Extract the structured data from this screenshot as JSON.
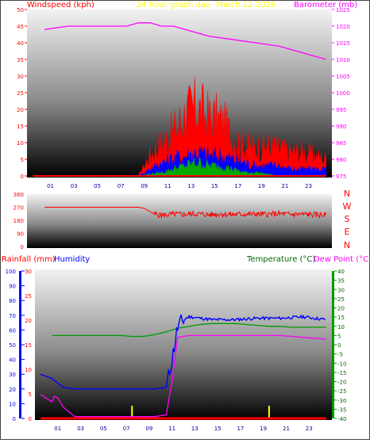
{
  "header": {
    "windspeed_label": "Windspeed (kph)",
    "title": "24 hour graph day",
    "date": "March 12 2026",
    "barometer_label": "Barometer (mb)"
  },
  "compass": [
    "N",
    "W",
    "S",
    "E",
    "N"
  ],
  "lower_labels": {
    "rainfall": "Rainfall (mm)",
    "humidity": "Humidity",
    "temperature": "Temperature (°C)",
    "dewpoint": "Dew Point (°C)"
  },
  "colors": {
    "wind_gust": "#ff0000",
    "wind_avg_blue": "#0000ff",
    "wind_avg_green": "#00aa00",
    "barometer": "#ff00ff",
    "direction": "#ff0000",
    "rainfall": "#ff0000",
    "humidity": "#0000ff",
    "temperature": "#009900",
    "dewpoint": "#ff00ff",
    "title": "#ffff00",
    "axis_left_top": "#ff0000",
    "axis_right_top": "#ff00ff",
    "axis_temp": "#006600",
    "hour_ticks": "#000099"
  },
  "chart_data": [
    {
      "type": "area",
      "ylim_left": [
        0,
        50
      ],
      "ylim_right": [
        975,
        1025
      ],
      "yticks_left": [
        0,
        5,
        10,
        15,
        20,
        25,
        30,
        35,
        40,
        45,
        50
      ],
      "yticks_right": [
        975,
        980,
        985,
        990,
        995,
        1000,
        1005,
        1010,
        1015,
        1020,
        1025
      ],
      "x_ticks": [
        "01",
        "03",
        "05",
        "07",
        "09",
        "11",
        "13",
        "15",
        "17",
        "19",
        "21",
        "23"
      ],
      "series": [
        {
          "axis": "right",
          "x": [
            0,
            2,
            4,
            6,
            7,
            8,
            9,
            10,
            11,
            12,
            14,
            16,
            18,
            20,
            22,
            24
          ],
          "y": [
            1019,
            1020,
            1020,
            1020,
            1020,
            1021,
            1021,
            1020,
            1020,
            1019,
            1017,
            1016,
            1015,
            1014,
            1012,
            1010
          ]
        },
        {
          "axis": "left",
          "kind": "gust",
          "x": [
            0,
            8,
            9,
            10,
            11,
            12,
            13,
            14,
            15,
            16,
            17,
            18,
            19,
            20,
            21,
            22,
            23,
            24
          ],
          "y": [
            0,
            0,
            6,
            10,
            13,
            18,
            20,
            17,
            16,
            12,
            9,
            8,
            9,
            8,
            7,
            7,
            6,
            5
          ]
        },
        {
          "axis": "left",
          "kind": "average",
          "x": [
            0,
            8,
            9,
            10,
            11,
            12,
            13,
            14,
            15,
            16,
            17,
            18,
            19,
            20,
            21,
            22,
            23,
            24
          ],
          "y": [
            0,
            0,
            2,
            4,
            5,
            6,
            7,
            6,
            6,
            5,
            4,
            3,
            3,
            3,
            2,
            2,
            2,
            2
          ]
        },
        {
          "axis": "left",
          "kind": "low",
          "x": [
            0,
            8,
            10,
            11,
            12,
            13,
            14,
            15,
            16,
            17,
            18,
            20,
            24
          ],
          "y": [
            0,
            0,
            1,
            2,
            3,
            4,
            3,
            3,
            2,
            1,
            1,
            0,
            0
          ]
        }
      ]
    },
    {
      "type": "line",
      "ylim": [
        0,
        360
      ],
      "yticks": [
        0,
        90,
        180,
        270,
        360
      ],
      "x": [
        0,
        2,
        4,
        6,
        7,
        8,
        8.5,
        9,
        9.5,
        10,
        11,
        12,
        13,
        14,
        15,
        16,
        17,
        18,
        19,
        20,
        21,
        22,
        23,
        24
      ],
      "y": [
        270,
        270,
        270,
        270,
        270,
        270,
        262,
        240,
        220,
        215,
        222,
        220,
        225,
        218,
        224,
        220,
        222,
        223,
        221,
        225,
        220,
        222,
        219,
        215
      ]
    },
    {
      "type": "line",
      "ylim_rain": [
        0,
        100
      ],
      "yticks_rain": [
        0,
        10,
        20,
        30,
        40,
        50,
        60,
        70,
        80,
        90,
        100
      ],
      "ylim_hum": [
        0,
        30
      ],
      "yticks_hum": [
        0,
        5,
        10,
        15,
        20,
        25,
        30
      ],
      "ylim_temp": [
        -40,
        40
      ],
      "yticks_temp": [
        -40,
        -35,
        -30,
        -25,
        -20,
        -15,
        -10,
        -5,
        0,
        5,
        10,
        15,
        20,
        25,
        30,
        35,
        40
      ],
      "x_ticks": [
        "01",
        "03",
        "05",
        "07",
        "09",
        "11",
        "13",
        "15",
        "17",
        "19",
        "21",
        "23"
      ],
      "series": [
        {
          "kind": "temperature",
          "x": [
            0,
            2,
            4,
            6,
            7,
            8,
            9,
            10,
            11,
            12,
            13,
            14,
            15,
            16,
            17,
            18,
            19,
            20,
            21,
            22,
            23,
            24
          ],
          "y": [
            5,
            5,
            5,
            5,
            4.5,
            4.5,
            5.5,
            7,
            9,
            10,
            11,
            11.5,
            11.5,
            11.5,
            11,
            10.5,
            10,
            10,
            9.5,
            9.5,
            9.5,
            9.5
          ]
        },
        {
          "kind": "dewpoint",
          "x": [
            -1,
            0,
            0.2,
            0.5,
            1,
            2,
            3,
            4,
            5,
            6,
            7,
            8,
            9,
            10,
            10.5,
            11,
            12,
            14,
            16,
            18,
            20,
            22,
            24
          ],
          "y": [
            -27,
            -31,
            -28,
            -29,
            -34,
            -39,
            -39,
            -39,
            -39,
            -39,
            -39,
            -39,
            -39,
            -38,
            -20,
            4,
            5,
            5,
            5,
            5,
            5,
            4,
            3
          ]
        },
        {
          "kind": "humidity",
          "x": [
            -1,
            0,
            0.5,
            1,
            2,
            4,
            6,
            8,
            9,
            10,
            10.5,
            11,
            11.5,
            12,
            13,
            14,
            16,
            18,
            20,
            22,
            24
          ],
          "y": [
            30,
            27,
            24,
            21,
            20,
            20,
            20,
            20,
            20,
            21,
            40,
            62,
            67,
            69,
            68,
            67,
            67,
            68,
            68,
            69,
            67
          ]
        },
        {
          "kind": "rainfall",
          "x": [
            -1,
            24
          ],
          "y": [
            0,
            0
          ]
        }
      ],
      "markers": [
        7,
        19
      ]
    }
  ]
}
